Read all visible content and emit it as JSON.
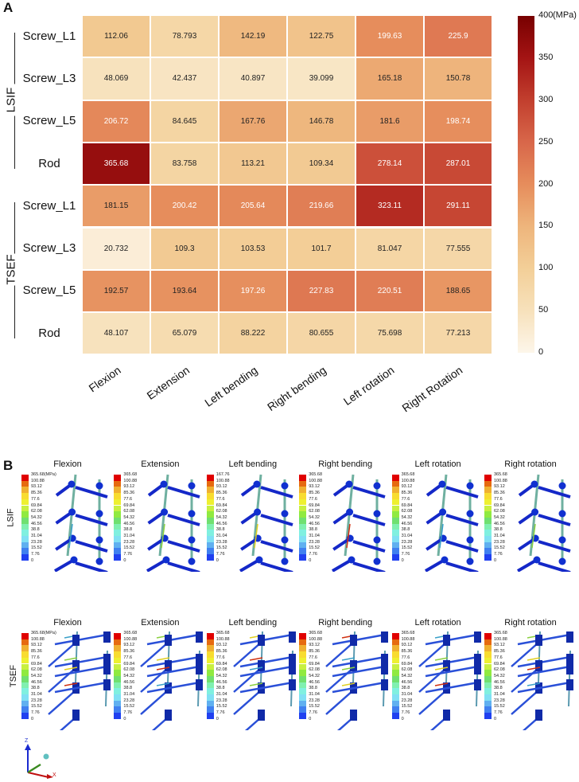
{
  "panel_labels": {
    "a": "A",
    "b": "B"
  },
  "chart_data": [
    {
      "type": "heatmap",
      "title": "",
      "row_groups": [
        {
          "name": "LSIF",
          "rows": [
            "Screw_L1",
            "Screw_L3",
            "Screw_L5",
            "Rod"
          ]
        },
        {
          "name": "TSEF",
          "rows": [
            "Screw_L1",
            "Screw_L3",
            "Screw_L5",
            "Rod"
          ]
        }
      ],
      "columns": [
        "Flexion",
        "Extension",
        "Left bending",
        "Right bending",
        "Left rotation",
        "Right Rotation"
      ],
      "values": [
        [
          112.06,
          78.793,
          142.19,
          122.75,
          199.63,
          225.9
        ],
        [
          48.069,
          42.437,
          40.897,
          39.099,
          165.18,
          150.78
        ],
        [
          206.72,
          84.645,
          167.76,
          146.78,
          181.6,
          198.74
        ],
        [
          365.68,
          83.758,
          113.21,
          109.34,
          278.14,
          287.01
        ],
        [
          181.15,
          200.42,
          205.64,
          219.66,
          323.11,
          291.11
        ],
        [
          20.732,
          109.3,
          103.53,
          101.7,
          81.047,
          77.555
        ],
        [
          192.57,
          193.64,
          197.26,
          227.83,
          220.51,
          188.65
        ],
        [
          48.107,
          65.079,
          88.222,
          80.655,
          75.698,
          77.213
        ]
      ],
      "value_labels": [
        [
          "112.06",
          "78.793",
          "142.19",
          "122.75",
          "199.63",
          "225.9"
        ],
        [
          "48.069",
          "42.437",
          "40.897",
          "39.099",
          "165.18",
          "150.78"
        ],
        [
          "206.72",
          "84.645",
          "167.76",
          "146.78",
          "181.6",
          "198.74"
        ],
        [
          "365.68",
          "83.758",
          "113.21",
          "109.34",
          "278.14",
          "287.01"
        ],
        [
          "181.15",
          "200.42",
          "205.64",
          "219.66",
          "323.11",
          "291.11"
        ],
        [
          "20.732",
          "109.3",
          "103.53",
          "101.7",
          "81.047",
          "77.555"
        ],
        [
          "192.57",
          "193.64",
          "197.26",
          "227.83",
          "220.51",
          "188.65"
        ],
        [
          "48.107",
          "65.079",
          "88.222",
          "80.655",
          "75.698",
          "77.213"
        ]
      ],
      "colorbar": {
        "min": 0,
        "max": 400,
        "ticks": [
          "0",
          "50",
          "100",
          "150",
          "200",
          "250",
          "300",
          "350",
          "400"
        ],
        "unit": "(MPa)",
        "colormap": [
          "#fdf6ea",
          "#f7e1bb",
          "#f3cf98",
          "#eeb57c",
          "#e68d5c",
          "#d8674a",
          "#c23f2e",
          "#a41414",
          "#780000"
        ]
      }
    }
  ],
  "panel_b": {
    "row_labels": [
      "LSIF",
      "TSEF"
    ],
    "titles": [
      [
        "Flexion",
        "Extension",
        "Left bending",
        "Right bending",
        "Left rotation",
        "Right rotation"
      ],
      [
        "Flexion",
        "Extension",
        "Left bending",
        "Right bending",
        "Left rotation",
        "Right rotation"
      ]
    ],
    "legend_max": [
      [
        "365.68(MPa)",
        "365.68",
        "167.76",
        "365.68",
        "365.68",
        "365.68"
      ],
      [
        "365.68(MPa)",
        "365.68",
        "365.68",
        "365.68",
        "365.68",
        "365.68"
      ]
    ],
    "legend_labels": [
      "100.88",
      "93.12",
      "85.36",
      "77.6",
      "69.84",
      "62.08",
      "54.32",
      "46.56",
      "38.8",
      "31.04",
      "23.28",
      "15.52",
      "7.76",
      "0"
    ],
    "legend_colors": [
      "#e00000",
      "#e66a10",
      "#f0b030",
      "#f8dc30",
      "#eef030",
      "#c8f040",
      "#90ea40",
      "#70e070",
      "#80f0b0",
      "#80f0e0",
      "#80e0f4",
      "#60b0f0",
      "#4080f0",
      "#2040f0"
    ],
    "axis_triad": {
      "z": "Z",
      "x": "X"
    }
  }
}
